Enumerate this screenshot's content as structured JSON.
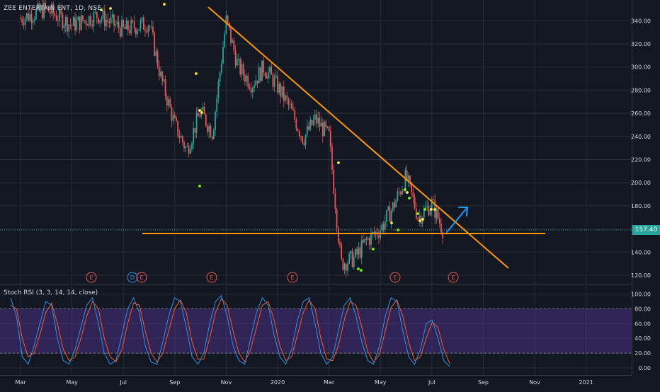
{
  "header": {
    "symbol": "ZEE ENTERTAIN ENT, 1D, NSE",
    "rsi_label": "Stoch RSI (3, 3, 14, 14, close)",
    "last_price": "157.40"
  },
  "colors": {
    "background": "#131722",
    "grid": "#2a2e39",
    "up": "#26a69a",
    "down": "#ef5350",
    "trendline": "#ff9800",
    "support": "#ff9800",
    "projection_arrow": "#2196f3",
    "rsi_band": "#673ab7",
    "rsi_k": "#2196f3",
    "rsi_d": "#ff5722",
    "dots_yellow": "#ffeb3b",
    "dots_green": "#76ff03",
    "event_marker": "#ef5350",
    "dividend_marker": "#2196f3"
  },
  "chart_data": [
    {
      "type": "candlestick",
      "title": "ZEE ENTERTAIN ENT, 1D, NSE",
      "x_axis_labels": [
        "Mar",
        "May",
        "Jul",
        "Sep",
        "Nov",
        "2020",
        "Mar",
        "May",
        "Jul",
        "Sep",
        "Nov",
        "2021"
      ],
      "y_axis_labels": [
        120.0,
        140.0,
        160.0,
        180.0,
        200.0,
        220.0,
        240.0,
        260.0,
        280.0,
        300.0,
        320.0,
        340.0
      ],
      "ylim": [
        110,
        350
      ],
      "last_price": 157.4,
      "series": [
        {
          "name": "price_path",
          "points": [
            [
              "Mar 2019",
              342
            ],
            [
              "Apr 2019",
              350
            ],
            [
              "May 2019",
              336
            ],
            [
              "Jun 2019",
              345
            ],
            [
              "Jul 2019",
              332
            ],
            [
              "Aug 2019",
              338
            ],
            [
              "Aug 2019",
              290
            ],
            [
              "Sep 2019",
              250
            ],
            [
              "Sep 2019",
              228
            ],
            [
              "Oct 2019",
              262
            ],
            [
              "Oct 2019",
              243
            ],
            [
              "Nov 2019",
              340
            ],
            [
              "Nov 2019",
              300
            ],
            [
              "Dec 2019",
              285
            ],
            [
              "Dec 2019",
              300
            ],
            [
              "Jan 2020",
              283
            ],
            [
              "Jan 2020",
              265
            ],
            [
              "Feb 2020",
              238
            ],
            [
              "Feb 2020",
              255
            ],
            [
              "Mar 2020",
              240
            ],
            [
              "Mar 2020",
              130
            ],
            [
              "Apr 2020",
              135
            ],
            [
              "Apr 2020",
              150
            ],
            [
              "May 2020",
              160
            ],
            [
              "May 2020",
              178
            ],
            [
              "Jun 2020",
              205
            ],
            [
              "Jun 2020",
              170
            ],
            [
              "Jul 2020",
              182
            ],
            [
              "Jul 2020",
              157.4
            ]
          ]
        }
      ],
      "annotations": {
        "descending_trendline": {
          "start": [
            "Aug 2019",
            347
          ],
          "end": [
            "Oct 2020",
            128
          ]
        },
        "support_line": {
          "from": "Aug 2019",
          "to": "Nov 2020",
          "value": 155
        },
        "projection_arrow": {
          "from": [
            "Jul 2020",
            157
          ],
          "to": [
            "Aug 2020",
            180
          ]
        },
        "event_markers": [
          "E",
          "D",
          "E",
          "E",
          "E",
          "E",
          "E"
        ]
      }
    },
    {
      "type": "line",
      "title": "Stoch RSI (3, 3, 14, 14, close)",
      "y_axis_labels": [
        0.0,
        20.0,
        40.0,
        60.0,
        80.0,
        100.0
      ],
      "ylim": [
        0,
        100
      ],
      "band": [
        20,
        80
      ],
      "series": [
        {
          "name": "K",
          "values": [
            95,
            70,
            15,
            5,
            30,
            60,
            90,
            85,
            40,
            10,
            5,
            25,
            55,
            85,
            95,
            60,
            20,
            5,
            10,
            45,
            80,
            95,
            75,
            30,
            8,
            5,
            35,
            70,
            95,
            90,
            55,
            15,
            5,
            20,
            60,
            90,
            98,
            70,
            30,
            10,
            5,
            40,
            75,
            95,
            85,
            45,
            15,
            5,
            25,
            65,
            90,
            95,
            60,
            20,
            5,
            15,
            50,
            85,
            95,
            70,
            35,
            10,
            5,
            30,
            70,
            95,
            90,
            50,
            15,
            5,
            25,
            60,
            65,
            40,
            10,
            2
          ]
        },
        {
          "name": "D",
          "values": [
            85,
            80,
            40,
            15,
            20,
            45,
            75,
            88,
            60,
            25,
            10,
            15,
            40,
            70,
            90,
            80,
            40,
            15,
            8,
            25,
            60,
            88,
            85,
            50,
            20,
            8,
            20,
            50,
            80,
            92,
            75,
            35,
            12,
            12,
            40,
            75,
            94,
            85,
            50,
            20,
            8,
            25,
            55,
            85,
            90,
            65,
            30,
            10,
            15,
            45,
            75,
            92,
            80,
            40,
            12,
            10,
            30,
            65,
            90,
            85,
            55,
            22,
            8,
            18,
            50,
            82,
            92,
            70,
            35,
            10,
            15,
            40,
            62,
            55,
            25,
            6
          ]
        }
      ]
    }
  ]
}
